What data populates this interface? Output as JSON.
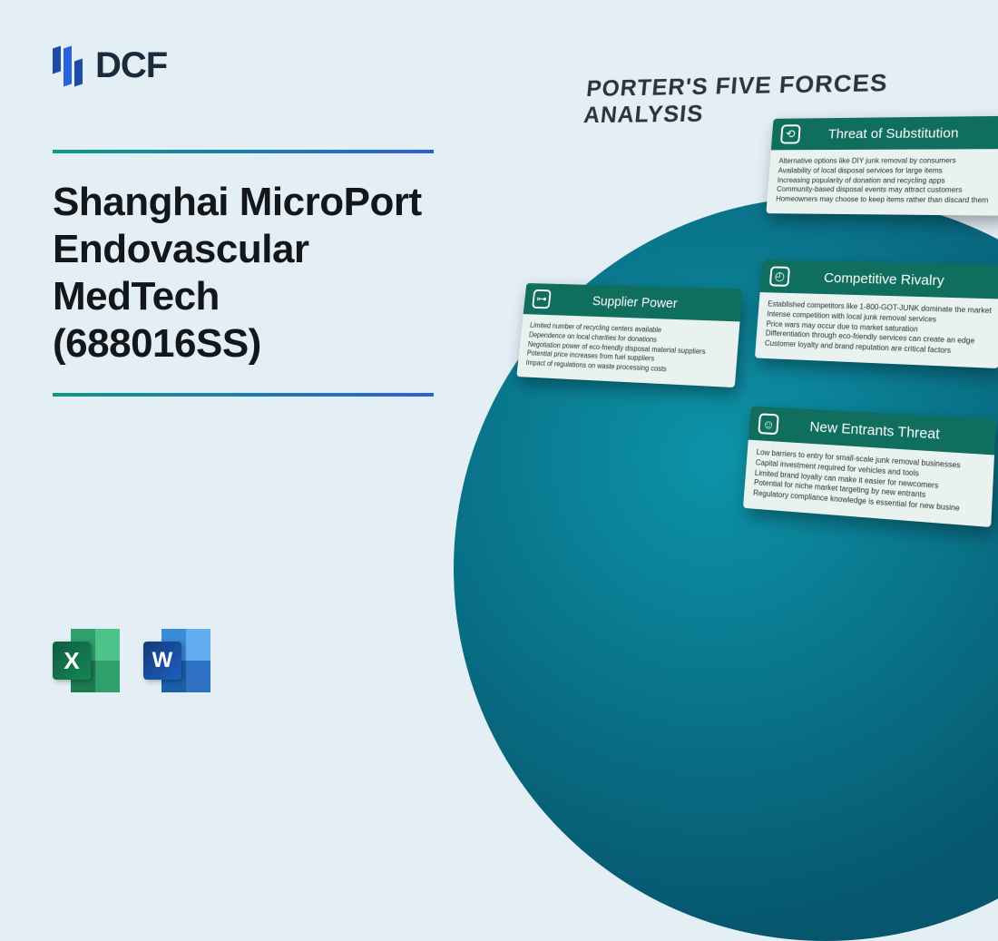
{
  "logo": {
    "text": "DCF"
  },
  "title": "Shanghai MicroPort Endovascular MedTech (688016SS)",
  "icons": {
    "excel": "X",
    "word": "W"
  },
  "diagram": {
    "heading": "PORTER'S FIVE FORCES ANALYSIS",
    "header_bg": "#0f6e5d",
    "card_bg": "#e9f2ef",
    "cards": {
      "substitution": {
        "title": "Threat of Substitution",
        "items": [
          "Alternative options like DIY junk removal by consumers",
          "Availability of local disposal services for large items",
          "Increasing popularity of donation and recycling apps",
          "Community-based disposal events may attract customers",
          "Homeowners may choose to keep items rather than discard them"
        ]
      },
      "rivalry": {
        "title": "Competitive Rivalry",
        "items": [
          "Established competitors like 1-800-GOT-JUNK dominate the market",
          "Intense competition with local junk removal services",
          "Price wars may occur due to market saturation",
          "Differentiation through eco-friendly services can create an edge",
          "Customer loyalty and brand reputation are critical factors"
        ]
      },
      "supplier": {
        "title": "Supplier Power",
        "items": [
          "Limited number of recycling centers available",
          "Dependence on local charities for donations",
          "Negotiation power of eco-friendly disposal material suppliers",
          "Potential price increases from fuel suppliers",
          "Impact of regulations on waste processing costs"
        ]
      },
      "entrants": {
        "title": "New Entrants Threat",
        "items": [
          "Low barriers to entry for small-scale junk removal businesses",
          "Capital investment required for vehicles and tools",
          "Limited brand loyalty can make it easier for newcomers",
          "Potential for niche market targeting by new entrants",
          "Regulatory compliance knowledge is essential for new busine"
        ]
      }
    }
  },
  "colors": {
    "page_bg": "#e4eff5",
    "gradient_from": "#0a9b87",
    "gradient_to": "#2e5fd9",
    "circle_inner": "#0c93a8",
    "circle_outer": "#06566e"
  }
}
